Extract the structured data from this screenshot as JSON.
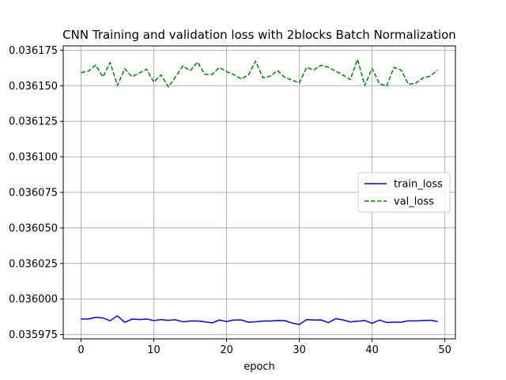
{
  "chart_data": {
    "type": "line",
    "title": "CNN Training and validation loss with 2blocks Batch Normalization",
    "xlabel": "epoch",
    "ylabel": "",
    "xlim": [
      -2.45,
      51.45
    ],
    "ylim": [
      0.035972,
      0.036178
    ],
    "x_ticks": [
      0,
      10,
      20,
      30,
      40,
      50
    ],
    "y_ticks": [
      0.035975,
      0.036,
      0.036025,
      0.03605,
      0.036075,
      0.0361,
      0.036125,
      0.03615,
      0.036175
    ],
    "y_tick_labels": [
      "0.035975",
      "0.036000",
      "0.036025",
      "0.036050",
      "0.036075",
      "0.036100",
      "0.036125",
      "0.036150",
      "0.036175"
    ],
    "x_tick_labels": [
      "0",
      "10",
      "20",
      "30",
      "40",
      "50"
    ],
    "grid": true,
    "legend_position": "center-right",
    "x": [
      0,
      1,
      2,
      3,
      4,
      5,
      6,
      7,
      8,
      9,
      10,
      11,
      12,
      13,
      14,
      15,
      16,
      17,
      18,
      19,
      20,
      21,
      22,
      23,
      24,
      25,
      26,
      27,
      28,
      29,
      30,
      31,
      32,
      33,
      34,
      35,
      36,
      37,
      38,
      39,
      40,
      41,
      42,
      43,
      44,
      45,
      46,
      47,
      48,
      49
    ],
    "series": [
      {
        "name": "train_loss",
        "color": "#0000ff",
        "style": "solid",
        "values": [
          0.0359859,
          0.035986,
          0.0359871,
          0.0359867,
          0.0359847,
          0.0359882,
          0.0359836,
          0.0359859,
          0.0359856,
          0.0359859,
          0.0359849,
          0.0359855,
          0.035985,
          0.0359854,
          0.035984,
          0.0359845,
          0.0359846,
          0.035984,
          0.0359832,
          0.0359852,
          0.0359842,
          0.0359852,
          0.0359853,
          0.0359837,
          0.035984,
          0.0359845,
          0.0359845,
          0.0359849,
          0.0359848,
          0.0359831,
          0.0359821,
          0.0359855,
          0.0359852,
          0.0359853,
          0.0359834,
          0.0359862,
          0.0359853,
          0.0359839,
          0.0359844,
          0.0359849,
          0.0359829,
          0.0359852,
          0.0359835,
          0.0359837,
          0.0359837,
          0.0359847,
          0.0359846,
          0.0359849,
          0.0359851,
          0.0359842
        ]
      },
      {
        "name": "val_loss",
        "color": "#008000",
        "style": "dashed",
        "values": [
          0.0361593,
          0.0361602,
          0.0361645,
          0.0361562,
          0.0361663,
          0.0361502,
          0.036162,
          0.0361563,
          0.036159,
          0.0361616,
          0.0361525,
          0.0361576,
          0.0361491,
          0.0361564,
          0.0361639,
          0.0361605,
          0.0361667,
          0.036158,
          0.0361579,
          0.0361628,
          0.0361599,
          0.0361578,
          0.0361548,
          0.0361575,
          0.0361673,
          0.0361556,
          0.0361567,
          0.0361607,
          0.0361558,
          0.036154,
          0.0361519,
          0.0361629,
          0.0361611,
          0.0361644,
          0.036163,
          0.0361602,
          0.0361575,
          0.0361543,
          0.0361685,
          0.0361502,
          0.0361622,
          0.0361514,
          0.0361498,
          0.0361629,
          0.036161,
          0.036151,
          0.0361518,
          0.0361554,
          0.0361568,
          0.036161
        ]
      }
    ]
  }
}
